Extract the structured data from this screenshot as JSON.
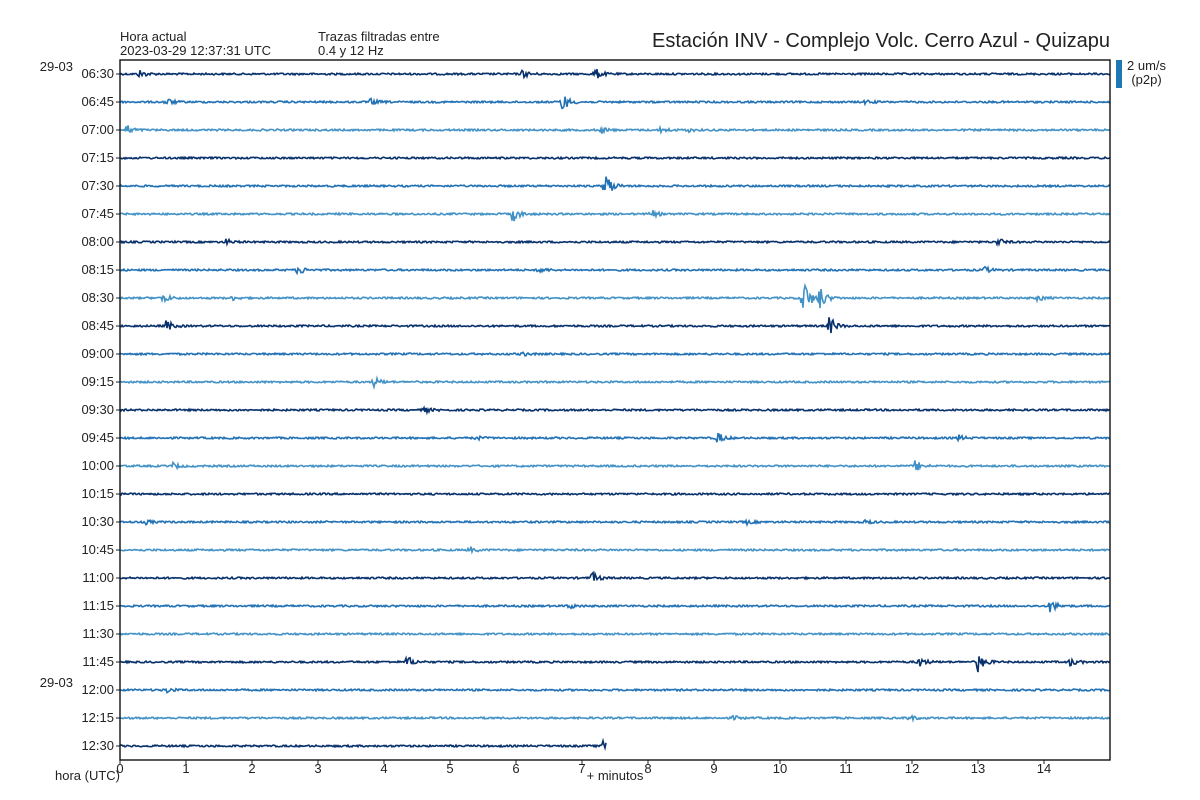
{
  "header": {
    "current_time_label": "Hora actual",
    "current_time_value": "2023-03-29 12:37:31 UTC",
    "filter_label": "Trazas filtradas entre",
    "filter_value": "0.4 y 12 Hz",
    "title": "Estación INV - Complejo Volc. Cerro Azul - Quizapu"
  },
  "scale": {
    "amplitude": "2 um/s",
    "mode": "(p2p)",
    "color": "#1f77b4"
  },
  "chart_data": {
    "type": "line",
    "xlabel": "+ minutos",
    "ylabel": "hora (UTC)",
    "xlim": [
      0,
      15
    ],
    "x_ticks": [
      "0",
      "1",
      "2",
      "3",
      "4",
      "5",
      "6",
      "7",
      "8",
      "9",
      "10",
      "11",
      "12",
      "13",
      "14"
    ],
    "date_labels": [
      {
        "row": 0,
        "text": "29-03"
      },
      {
        "row": 22,
        "text": "29-03"
      }
    ],
    "row_colors": [
      "#08306b",
      "#2171b5",
      "#4292c6"
    ],
    "rows": [
      {
        "label": "06:30",
        "events": [
          [
            0.3,
            4
          ],
          [
            6.1,
            4
          ],
          [
            7.2,
            6
          ]
        ]
      },
      {
        "label": "06:45",
        "events": [
          [
            0.7,
            4
          ],
          [
            3.8,
            3
          ],
          [
            6.7,
            10
          ],
          [
            11.3,
            2
          ]
        ]
      },
      {
        "label": "07:00",
        "events": [
          [
            0.1,
            5
          ],
          [
            7.3,
            3
          ],
          [
            8.2,
            3
          ],
          [
            8.6,
            2
          ]
        ]
      },
      {
        "label": "07:15",
        "events": []
      },
      {
        "label": "07:30",
        "events": [
          [
            7.35,
            16
          ]
        ]
      },
      {
        "label": "07:45",
        "events": [
          [
            5.95,
            8
          ],
          [
            8.05,
            4
          ]
        ]
      },
      {
        "label": "08:00",
        "events": [
          [
            1.6,
            3
          ],
          [
            13.3,
            4
          ]
        ]
      },
      {
        "label": "08:15",
        "events": [
          [
            2.7,
            5
          ],
          [
            6.35,
            3
          ],
          [
            13.1,
            3
          ]
        ]
      },
      {
        "label": "08:30",
        "events": [
          [
            0.65,
            5
          ],
          [
            1.7,
            2
          ],
          [
            10.35,
            22
          ],
          [
            10.6,
            12
          ],
          [
            13.9,
            3
          ]
        ]
      },
      {
        "label": "08:45",
        "events": [
          [
            0.7,
            6
          ],
          [
            10.75,
            10
          ]
        ]
      },
      {
        "label": "09:00",
        "events": [
          [
            6.1,
            2
          ]
        ]
      },
      {
        "label": "09:15",
        "events": [
          [
            3.85,
            5
          ]
        ]
      },
      {
        "label": "09:30",
        "events": [
          [
            4.6,
            3
          ]
        ]
      },
      {
        "label": "09:45",
        "events": [
          [
            5.4,
            2
          ],
          [
            9.05,
            6
          ],
          [
            12.7,
            3
          ]
        ]
      },
      {
        "label": "10:00",
        "events": [
          [
            0.8,
            3
          ],
          [
            12.05,
            6
          ]
        ]
      },
      {
        "label": "10:15",
        "events": []
      },
      {
        "label": "10:30",
        "events": [
          [
            0.4,
            2
          ],
          [
            9.5,
            2
          ],
          [
            11.3,
            2
          ]
        ]
      },
      {
        "label": "10:45",
        "events": [
          [
            5.3,
            3
          ]
        ]
      },
      {
        "label": "11:00",
        "events": [
          [
            7.15,
            6
          ]
        ]
      },
      {
        "label": "11:15",
        "events": [
          [
            6.8,
            3
          ],
          [
            14.1,
            7
          ]
        ]
      },
      {
        "label": "11:30",
        "events": []
      },
      {
        "label": "11:45",
        "events": [
          [
            4.35,
            6
          ],
          [
            12.1,
            6
          ],
          [
            13.0,
            10
          ],
          [
            14.4,
            4
          ]
        ]
      },
      {
        "label": "12:00",
        "events": [
          [
            0.7,
            3
          ]
        ]
      },
      {
        "label": "12:15",
        "events": [
          [
            9.3,
            2
          ],
          [
            11.95,
            3
          ]
        ]
      },
      {
        "label": "12:30",
        "events": [
          [
            7.3,
            7
          ]
        ],
        "end": 7.37
      }
    ]
  }
}
